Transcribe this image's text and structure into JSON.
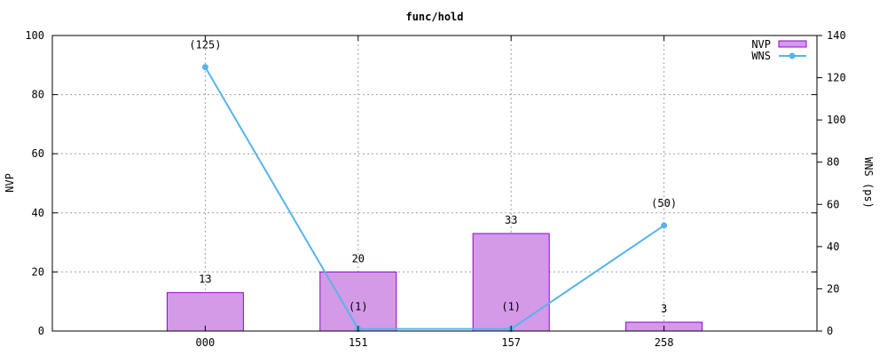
{
  "chart_data": {
    "type": "bar",
    "title": "func/hold",
    "categories": [
      "000",
      "151",
      "157",
      "258"
    ],
    "series": [
      {
        "name": "NVP",
        "type": "bar",
        "axis": "y1",
        "values": [
          13,
          20,
          33,
          3
        ],
        "labels": [
          "13",
          "20",
          "33",
          "3"
        ],
        "color": "#d39ae8",
        "edge_color": "#9400d3"
      },
      {
        "name": "WNS",
        "type": "line",
        "axis": "y2",
        "values": [
          125,
          1,
          1,
          50
        ],
        "labels": [
          "(125)",
          "(1)",
          "(1)",
          "(50)"
        ],
        "color": "#56b4e9"
      }
    ],
    "ylabel": "NVP",
    "y2label": "WNS (ps)",
    "ylim": [
      0,
      100
    ],
    "y2lim": [
      0,
      140
    ],
    "yticks": [
      0,
      20,
      40,
      60,
      80,
      100
    ],
    "y2ticks": [
      0,
      20,
      40,
      60,
      80,
      100,
      120,
      140
    ],
    "grid": true,
    "legend_position": "top-right"
  }
}
